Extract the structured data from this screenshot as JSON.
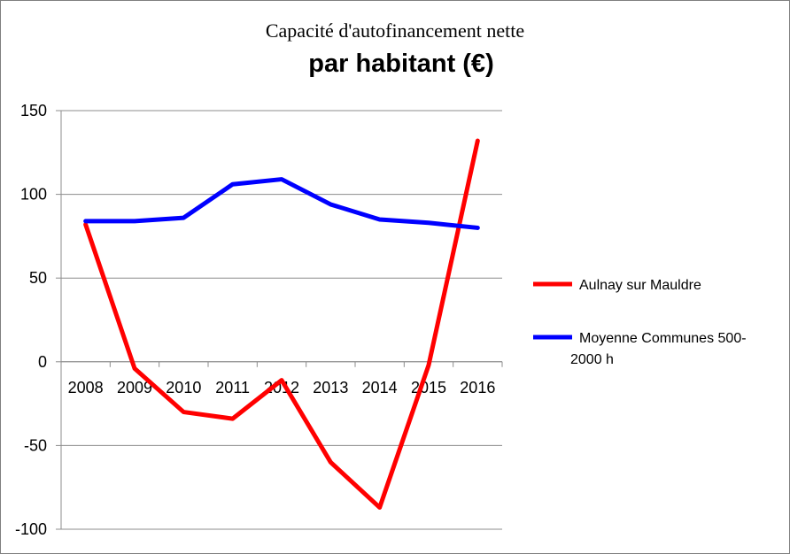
{
  "chart_data": {
    "type": "line",
    "title": "Capacité d'autofinancement nette",
    "subtitle": "par habitant (€)",
    "categories": [
      "2008",
      "2009",
      "2010",
      "2011",
      "2012",
      "2013",
      "2014",
      "2015",
      "2016"
    ],
    "ylim": [
      -100,
      150
    ],
    "yticks": [
      -100,
      -50,
      0,
      50,
      100,
      150
    ],
    "grid": true,
    "legend_position": "right",
    "series": [
      {
        "name": "Aulnay sur Mauldre",
        "color": "#ff0000",
        "values": [
          82,
          -4,
          -30,
          -34,
          -11,
          -60,
          -87,
          -2,
          132
        ]
      },
      {
        "name": "Moyenne Communes 500-2000 h",
        "name_lines": [
          "Moyenne Communes 500-",
          "2000 h"
        ],
        "color": "#0000ff",
        "values": [
          84,
          84,
          86,
          106,
          109,
          94,
          85,
          83,
          80
        ]
      }
    ]
  }
}
